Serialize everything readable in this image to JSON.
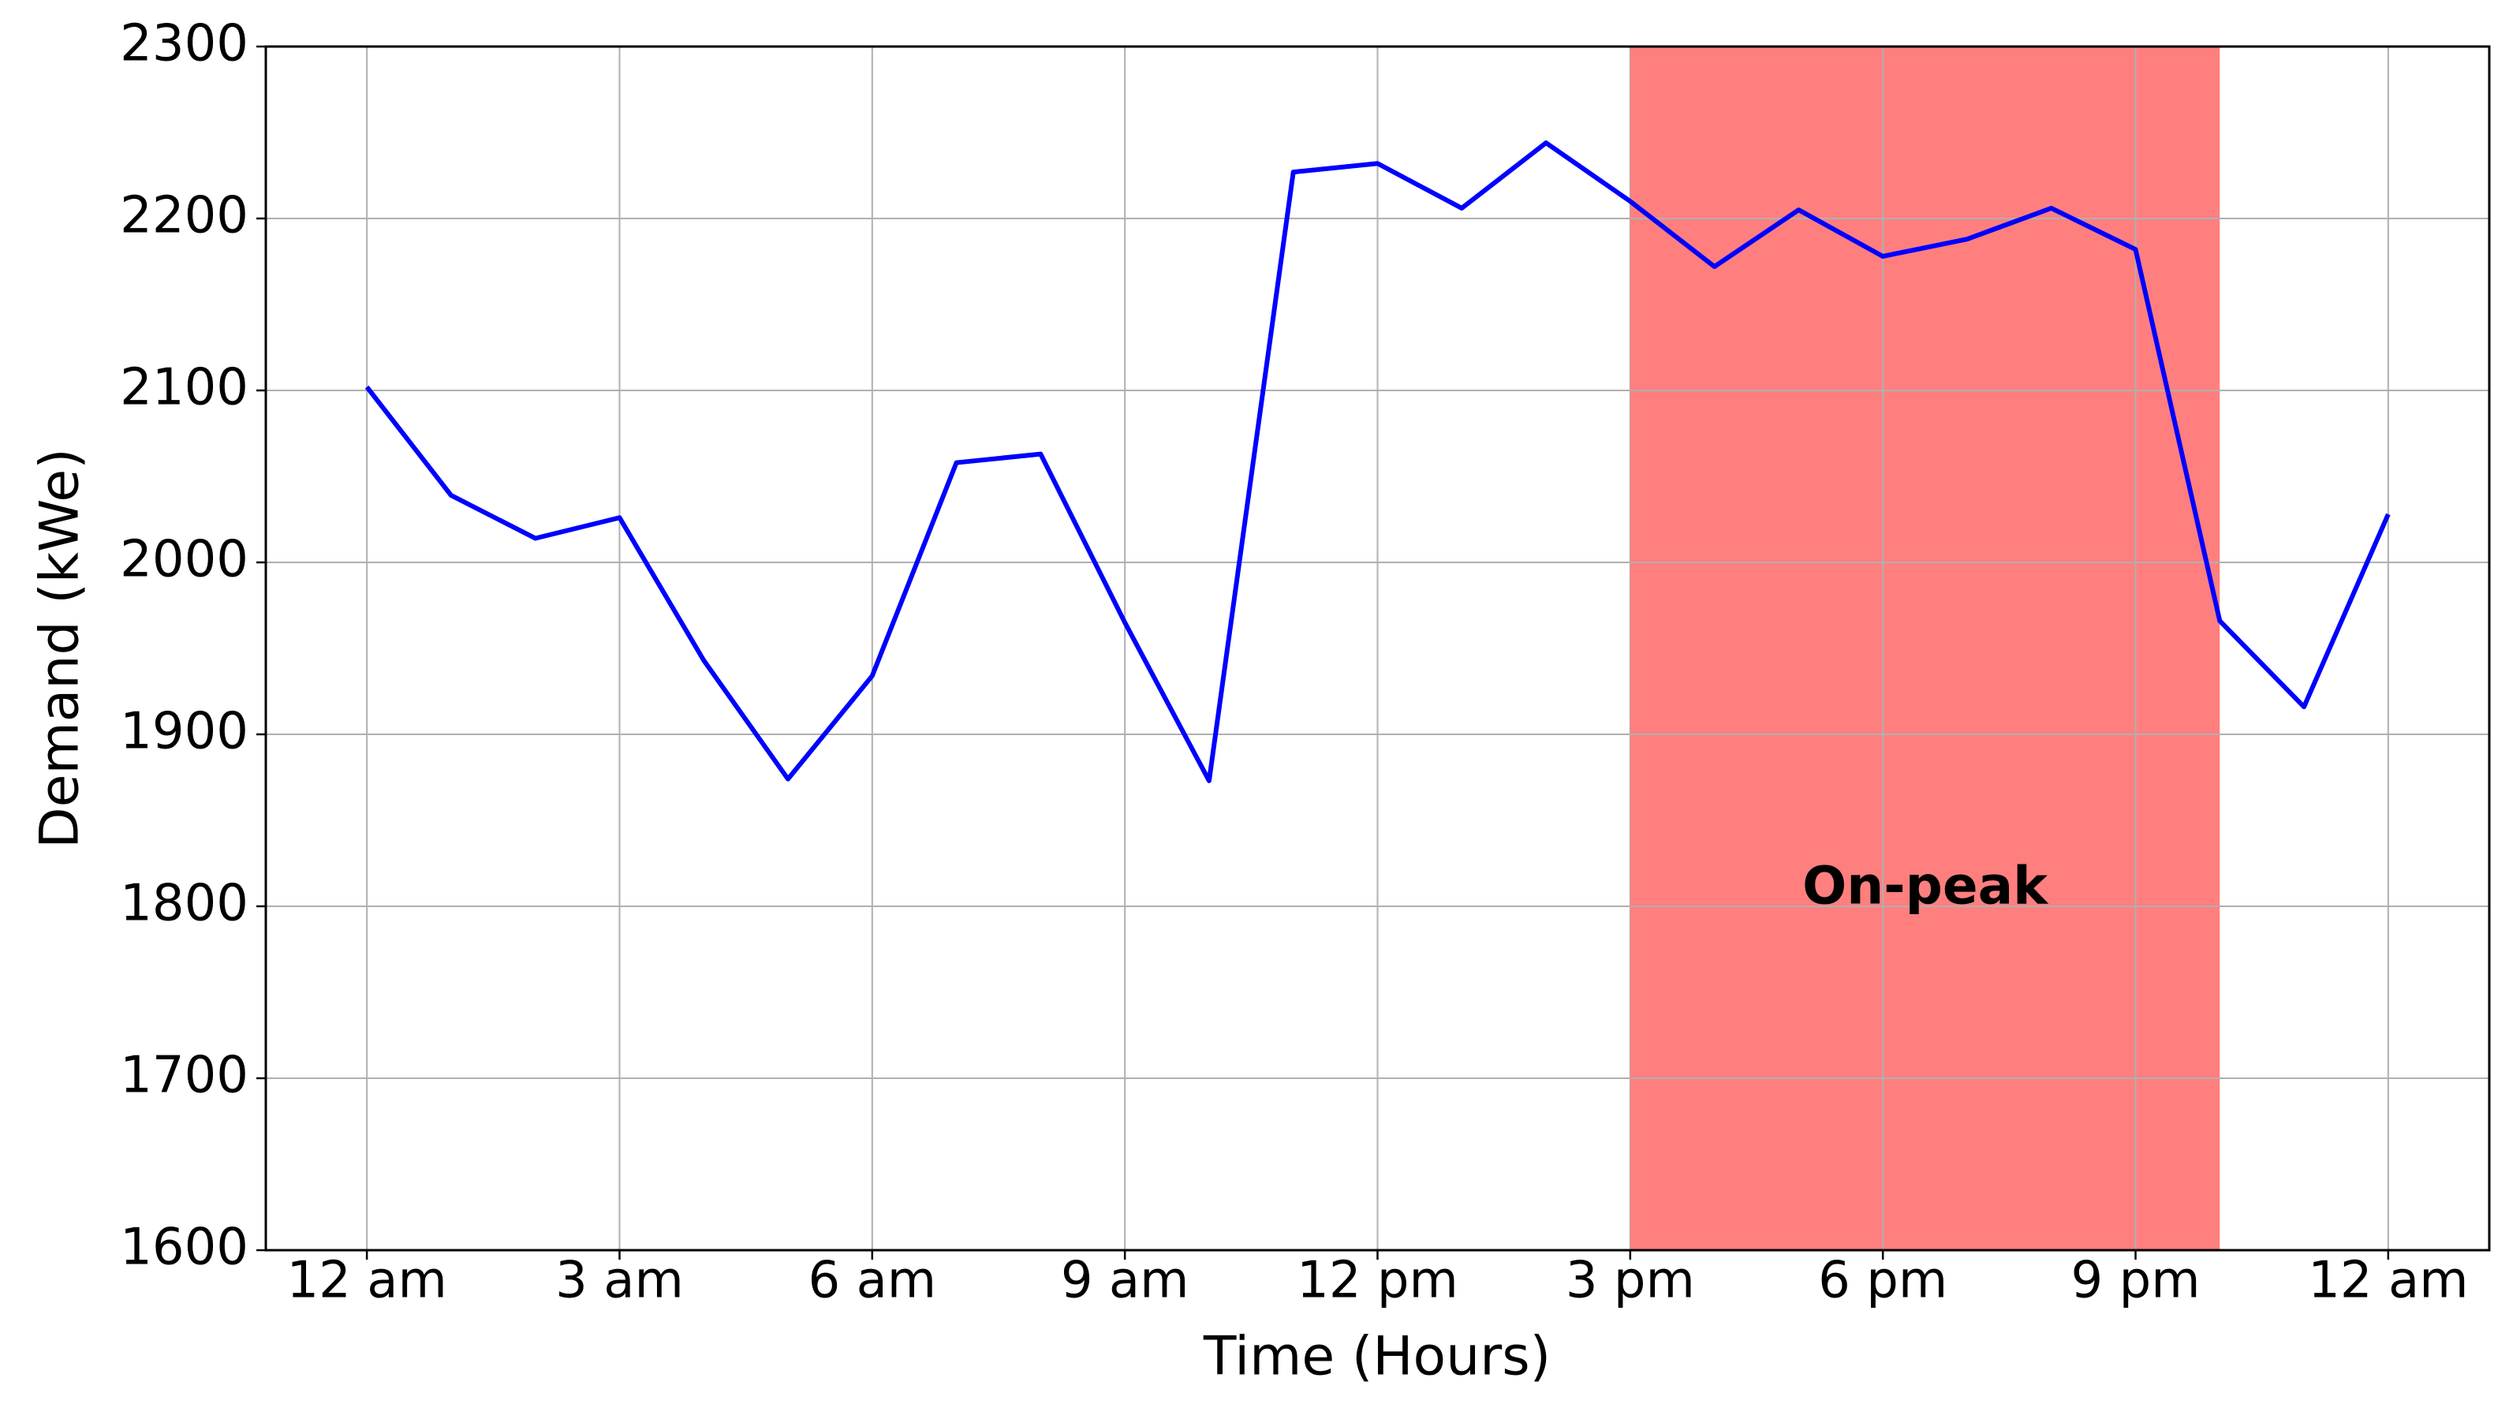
{
  "chart_data": {
    "type": "line",
    "x_label": "Time (Hours)",
    "y_label": "Demand (kWe)",
    "x": [
      0,
      1,
      2,
      3,
      4,
      5,
      6,
      7,
      8,
      9,
      10,
      11,
      12,
      13,
      14,
      15,
      16,
      17,
      18,
      19,
      20,
      21,
      22,
      23,
      24
    ],
    "series": [
      {
        "color": "#0000ff",
        "values": [
          2102,
          2039,
          2014,
          2026,
          1943,
          1874,
          1934,
          2058,
          2063,
          1965,
          1873,
          2227,
          2232,
          2206,
          2244,
          2210,
          2172,
          2205,
          2178,
          2188,
          2206,
          2182,
          1966,
          1916,
          2028
        ]
      }
    ],
    "xlim": [
      -1.2,
      25.2
    ],
    "ylim": [
      1600,
      2300
    ],
    "xticks": [
      {
        "value": 0,
        "label": "12 am"
      },
      {
        "value": 3,
        "label": "3 am"
      },
      {
        "value": 6,
        "label": "6 am"
      },
      {
        "value": 9,
        "label": "9 am"
      },
      {
        "value": 12,
        "label": "12 pm"
      },
      {
        "value": 15,
        "label": "3 pm"
      },
      {
        "value": 18,
        "label": "6 pm"
      },
      {
        "value": 21,
        "label": "9 pm"
      },
      {
        "value": 24,
        "label": "12 am"
      }
    ],
    "yticks": [
      1600,
      1700,
      1800,
      1900,
      2000,
      2100,
      2200,
      2300
    ],
    "grid": true,
    "shaded_region": {
      "x": [
        15,
        22
      ],
      "color": "#ff7f7f"
    },
    "annotation": {
      "text": "On-peak",
      "x": 18.5,
      "y": 1810
    }
  }
}
